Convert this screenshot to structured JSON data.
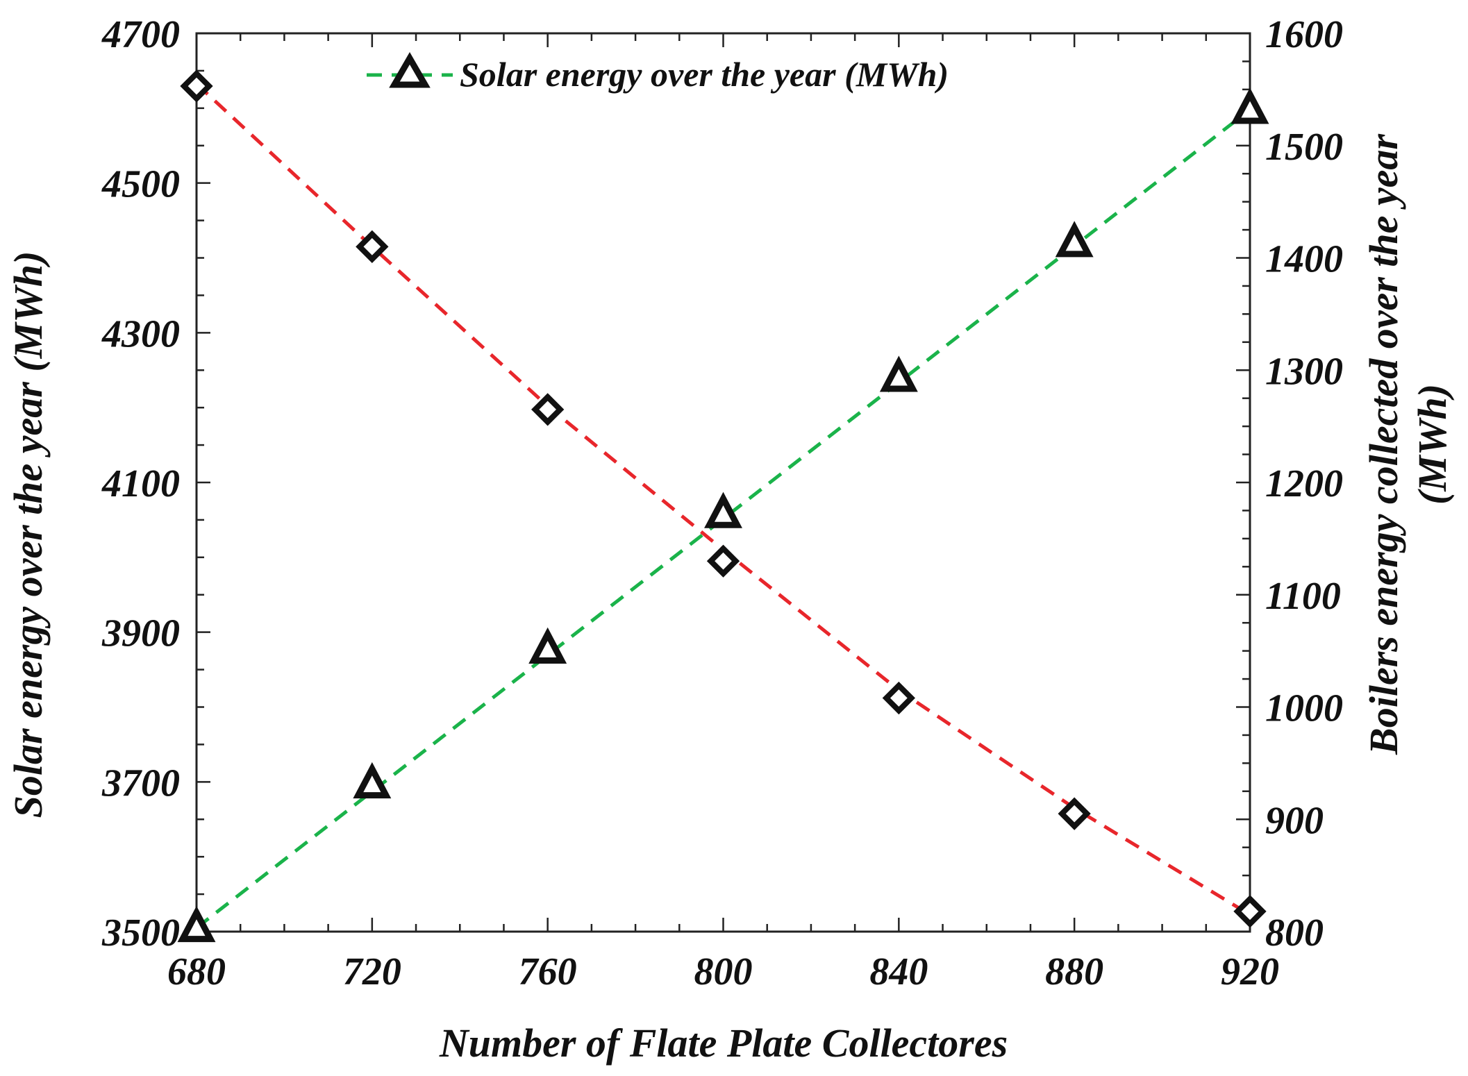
{
  "chart_data": {
    "type": "line",
    "title": "",
    "xlabel": "Number of Flate Plate Collectores",
    "ylabel": "Solar energy over the year (MWh)",
    "y2label_lines": [
      "Boilers energy collected over the year",
      "(MWh)"
    ],
    "x": [
      680,
      720,
      760,
      800,
      840,
      880,
      920
    ],
    "xlim": [
      680,
      920
    ],
    "ylim": [
      3500,
      4700
    ],
    "y2lim": [
      800,
      1600
    ],
    "xticks": [
      "680",
      "720",
      "760",
      "800",
      "840",
      "880",
      "920"
    ],
    "yticks": [
      "3500",
      "3700",
      "3900",
      "4100",
      "4300",
      "4500",
      "4700"
    ],
    "y2ticks": [
      "800",
      "900",
      "1000",
      "1100",
      "1200",
      "1300",
      "1400",
      "1500",
      "1600"
    ],
    "series": [
      {
        "name": "Solar energy over the year (MWh)",
        "axis": "left",
        "marker": "triangle",
        "values": [
          3505,
          3697,
          3877,
          4058,
          4240,
          4420,
          4598
        ],
        "fit": [
          [
            680,
            3505
          ],
          [
            920,
            4598
          ]
        ],
        "color": "#1ab34a"
      },
      {
        "name": "Boilers energy collected over the year (MWh)",
        "axis": "right",
        "marker": "diamond",
        "values": [
          1553,
          1410,
          1265,
          1130,
          1008,
          905,
          818
        ],
        "fit": [
          [
            680,
            1555
          ],
          [
            720,
            1410
          ],
          [
            760,
            1268
          ],
          [
            800,
            1140
          ],
          [
            840,
            1015
          ],
          [
            880,
            910
          ],
          [
            920,
            815
          ]
        ],
        "color": "#e8262b"
      }
    ],
    "legend": {
      "position": "top-center",
      "entries": [
        "Solar energy over the year (MWh)"
      ]
    }
  }
}
